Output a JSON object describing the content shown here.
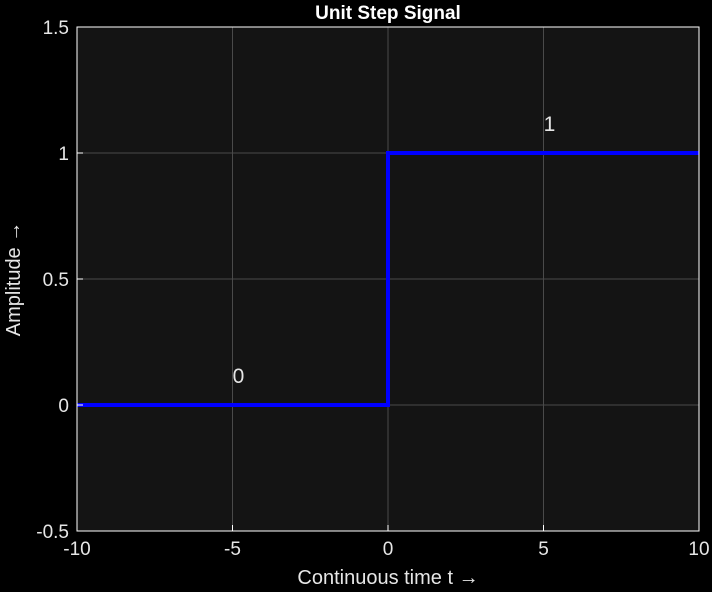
{
  "chart_data": {
    "type": "line",
    "title": "Unit Step Signal",
    "xlabel": "Continuous time t →",
    "ylabel": "Amplitude →",
    "xlim": [
      -10,
      10
    ],
    "ylim": [
      -0.5,
      1.5
    ],
    "xticks": [
      -10,
      -5,
      0,
      5,
      10
    ],
    "yticks": [
      -0.5,
      0,
      0.5,
      1,
      1.5
    ],
    "xtick_labels": [
      "-10",
      "-5",
      "0",
      "5",
      "10"
    ],
    "ytick_labels": [
      "-0.5",
      "0",
      "0.5",
      "1",
      "1.5"
    ],
    "grid": true,
    "series": [
      {
        "x": [
          -10,
          0,
          0,
          10
        ],
        "y": [
          0,
          0,
          1,
          1
        ],
        "color": "#0000ff"
      }
    ],
    "annotations": [
      {
        "text": "0",
        "x": -5,
        "y": 0.1
      },
      {
        "text": "1",
        "x": 5,
        "y": 1.1
      }
    ]
  },
  "colors": {
    "background": "#000000",
    "axes_background": "#141414",
    "grid": "#4a4a4a",
    "axes_edge": "#ffffff",
    "text": "#e6e6e6",
    "title_text": "#ffffff",
    "line": "#0000ff"
  }
}
